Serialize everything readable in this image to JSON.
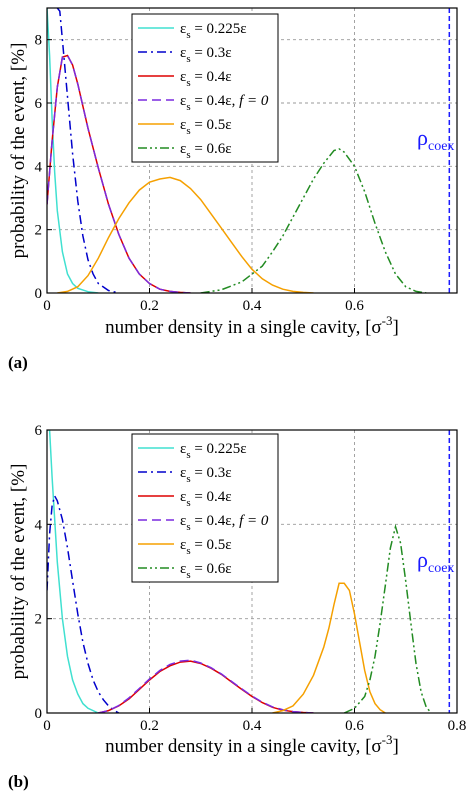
{
  "chart_data": [
    {
      "type": "line",
      "panel_label": "(a)",
      "xlabel": "number density in a single cavity, [σ⁻³]",
      "xlabel_parts": {
        "main": "number density in a single cavity, [σ",
        "sup": "-3",
        "end": "]"
      },
      "ylabel": "probability of the event, [%]",
      "xlim": [
        0,
        0.8
      ],
      "ylim": [
        0,
        9
      ],
      "xticks": [
        0,
        0.2,
        0.4,
        0.6
      ],
      "xtick_labels": [
        "0",
        "0.2",
        "0.4",
        "0.6"
      ],
      "yticks": [
        0,
        2,
        4,
        6,
        8
      ],
      "ytick_labels": [
        "0",
        "2",
        "4",
        "6",
        "8"
      ],
      "grid": true,
      "legend_position": "top-center",
      "annotation": {
        "text": "ρ",
        "sub": "coex",
        "x": 0.785
      },
      "series": [
        {
          "name": "εs = 0.225ε",
          "color": "#40e0d0",
          "dash": "solid",
          "x": [
            0.0,
            0.005,
            0.01,
            0.015,
            0.02,
            0.03,
            0.04,
            0.05,
            0.06,
            0.08,
            0.1
          ],
          "y": [
            9.0,
            7.5,
            5.5,
            3.8,
            2.6,
            1.3,
            0.6,
            0.3,
            0.15,
            0.04,
            0.0
          ]
        },
        {
          "name": "εs = 0.3ε",
          "color": "#0000cc",
          "dash": "dashdot",
          "x": [
            0.02,
            0.025,
            0.03,
            0.04,
            0.05,
            0.06,
            0.07,
            0.08,
            0.09,
            0.1,
            0.12,
            0.14
          ],
          "y": [
            9.0,
            8.9,
            8.0,
            6.2,
            4.4,
            2.9,
            1.8,
            1.05,
            0.6,
            0.3,
            0.08,
            0.0
          ]
        },
        {
          "name": "εs = 0.4ε",
          "color": "#dd0000",
          "dash": "solid",
          "x": [
            0.0,
            0.01,
            0.02,
            0.03,
            0.04,
            0.05,
            0.06,
            0.07,
            0.08,
            0.1,
            0.12,
            0.14,
            0.16,
            0.18,
            0.2,
            0.22,
            0.24,
            0.26,
            0.28
          ],
          "y": [
            2.8,
            4.8,
            6.5,
            7.45,
            7.5,
            7.2,
            6.6,
            5.9,
            5.2,
            3.95,
            2.8,
            1.85,
            1.1,
            0.6,
            0.3,
            0.12,
            0.05,
            0.02,
            0.0
          ]
        },
        {
          "name": "εs = 0.4ε, f = 0",
          "color": "#7a2adf",
          "dash": "dashed",
          "x": [
            0.0,
            0.01,
            0.02,
            0.03,
            0.04,
            0.05,
            0.06,
            0.07,
            0.08,
            0.1,
            0.12,
            0.14,
            0.16,
            0.18,
            0.2,
            0.22,
            0.24,
            0.26,
            0.28
          ],
          "y": [
            2.8,
            4.8,
            6.5,
            7.45,
            7.5,
            7.2,
            6.6,
            5.9,
            5.2,
            3.95,
            2.8,
            1.85,
            1.1,
            0.6,
            0.3,
            0.12,
            0.05,
            0.02,
            0.0
          ]
        },
        {
          "name": "εs = 0.5ε",
          "color": "#f5a000",
          "dash": "solid",
          "x": [
            0.02,
            0.04,
            0.06,
            0.08,
            0.1,
            0.12,
            0.14,
            0.16,
            0.18,
            0.2,
            0.22,
            0.24,
            0.26,
            0.28,
            0.3,
            0.32,
            0.34,
            0.36,
            0.38,
            0.4,
            0.42,
            0.44,
            0.46,
            0.48,
            0.5,
            0.52
          ],
          "y": [
            0.0,
            0.05,
            0.2,
            0.55,
            1.1,
            1.75,
            2.35,
            2.85,
            3.25,
            3.5,
            3.6,
            3.65,
            3.55,
            3.3,
            2.95,
            2.5,
            2.05,
            1.6,
            1.15,
            0.75,
            0.45,
            0.25,
            0.12,
            0.05,
            0.02,
            0.0
          ]
        },
        {
          "name": "εs = 0.6ε",
          "color": "#228b22",
          "dash": "dashdotdot",
          "x": [
            0.3,
            0.34,
            0.38,
            0.42,
            0.44,
            0.46,
            0.48,
            0.5,
            0.52,
            0.54,
            0.56,
            0.57,
            0.58,
            0.6,
            0.62,
            0.64,
            0.66,
            0.68,
            0.7,
            0.72,
            0.74
          ],
          "y": [
            0.0,
            0.1,
            0.35,
            0.85,
            1.3,
            1.8,
            2.4,
            3.0,
            3.6,
            4.1,
            4.5,
            4.55,
            4.45,
            4.0,
            3.2,
            2.2,
            1.3,
            0.6,
            0.2,
            0.05,
            0.0
          ]
        }
      ]
    },
    {
      "type": "line",
      "panel_label": "(b)",
      "xlabel": "number density in a single cavity, [σ⁻³]",
      "xlabel_parts": {
        "main": "number density in a single cavity, [σ",
        "sup": "-3",
        "end": "]"
      },
      "ylabel": "probability of the event, [%]",
      "xlim": [
        0,
        0.8
      ],
      "ylim": [
        0,
        6
      ],
      "xticks": [
        0,
        0.2,
        0.4,
        0.6,
        0.8
      ],
      "xtick_labels": [
        "0",
        "0.2",
        "0.4",
        "0.6",
        "0.8"
      ],
      "yticks": [
        0,
        2,
        4,
        6
      ],
      "ytick_labels": [
        "0",
        "2",
        "4",
        "6"
      ],
      "grid": true,
      "legend_position": "top-center",
      "annotation": {
        "text": "ρ",
        "sub": "coex",
        "x": 0.785
      },
      "series": [
        {
          "name": "εs = 0.225ε",
          "color": "#40e0d0",
          "dash": "solid",
          "x": [
            0.0,
            0.005,
            0.01,
            0.02,
            0.03,
            0.04,
            0.05,
            0.06,
            0.07,
            0.08,
            0.1
          ],
          "y": [
            6.0,
            6.0,
            5.0,
            3.2,
            2.0,
            1.2,
            0.7,
            0.4,
            0.2,
            0.1,
            0.0
          ]
        },
        {
          "name": "εs = 0.3ε",
          "color": "#0000cc",
          "dash": "dashdot",
          "x": [
            0.0,
            0.005,
            0.01,
            0.015,
            0.02,
            0.03,
            0.04,
            0.05,
            0.06,
            0.07,
            0.08,
            0.09,
            0.1,
            0.11,
            0.12,
            0.13,
            0.14
          ],
          "y": [
            2.6,
            3.8,
            4.4,
            4.6,
            4.5,
            4.1,
            3.5,
            2.8,
            2.1,
            1.5,
            1.05,
            0.7,
            0.45,
            0.28,
            0.15,
            0.06,
            0.0
          ]
        },
        {
          "name": "εs = 0.4ε",
          "color": "#dd0000",
          "dash": "solid",
          "x": [
            0.1,
            0.12,
            0.14,
            0.16,
            0.18,
            0.2,
            0.22,
            0.24,
            0.26,
            0.28,
            0.3,
            0.32,
            0.34,
            0.36,
            0.38,
            0.4,
            0.42,
            0.44,
            0.46,
            0.48,
            0.5,
            0.52
          ],
          "y": [
            0.0,
            0.05,
            0.15,
            0.3,
            0.5,
            0.7,
            0.88,
            1.0,
            1.08,
            1.1,
            1.05,
            0.95,
            0.82,
            0.66,
            0.5,
            0.35,
            0.22,
            0.12,
            0.06,
            0.03,
            0.01,
            0.0
          ]
        },
        {
          "name": "εs = 0.4ε, f = 0",
          "color": "#7a2adf",
          "dash": "dashed",
          "x": [
            0.1,
            0.12,
            0.14,
            0.16,
            0.18,
            0.2,
            0.22,
            0.24,
            0.26,
            0.28,
            0.3,
            0.32,
            0.34,
            0.36,
            0.38,
            0.4,
            0.42,
            0.44,
            0.46,
            0.48,
            0.5,
            0.52
          ],
          "y": [
            0.0,
            0.05,
            0.16,
            0.32,
            0.52,
            0.72,
            0.9,
            1.03,
            1.1,
            1.12,
            1.06,
            0.96,
            0.83,
            0.67,
            0.51,
            0.36,
            0.23,
            0.13,
            0.07,
            0.03,
            0.01,
            0.0
          ]
        },
        {
          "name": "εs = 0.5ε",
          "color": "#f5a000",
          "dash": "solid",
          "x": [
            0.44,
            0.46,
            0.48,
            0.5,
            0.52,
            0.54,
            0.55,
            0.56,
            0.57,
            0.58,
            0.59,
            0.6,
            0.61,
            0.62,
            0.63,
            0.64,
            0.65,
            0.66
          ],
          "y": [
            0.0,
            0.05,
            0.15,
            0.4,
            0.8,
            1.4,
            1.8,
            2.3,
            2.75,
            2.75,
            2.6,
            2.1,
            1.5,
            0.9,
            0.45,
            0.2,
            0.07,
            0.0
          ]
        },
        {
          "name": "εs = 0.6ε",
          "color": "#228b22",
          "dash": "dashdotdot",
          "x": [
            0.58,
            0.6,
            0.62,
            0.63,
            0.64,
            0.65,
            0.66,
            0.67,
            0.68,
            0.69,
            0.7,
            0.71,
            0.72,
            0.73,
            0.74,
            0.75
          ],
          "y": [
            0.0,
            0.1,
            0.35,
            0.7,
            1.2,
            1.9,
            2.7,
            3.5,
            3.95,
            3.6,
            2.8,
            1.9,
            1.05,
            0.45,
            0.12,
            0.0
          ]
        }
      ]
    }
  ]
}
